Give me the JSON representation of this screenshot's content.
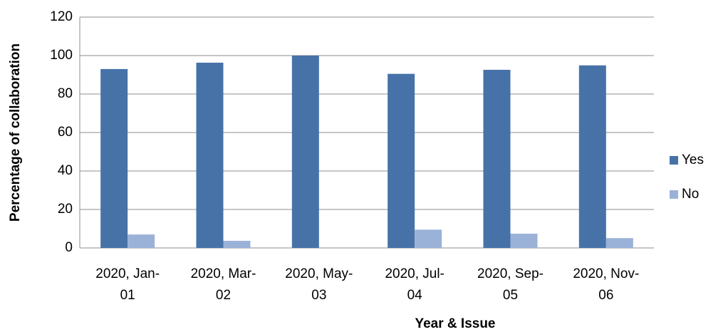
{
  "chart_data": {
    "type": "bar",
    "xlabel": "Year & Issue",
    "ylabel": "Percentage of collaboration",
    "categories": [
      "2020, Jan-01",
      "2020, Mar-02",
      "2020, May-03",
      "2020, Jul-04",
      "2020, Sep-05",
      "2020, Nov-06"
    ],
    "series": [
      {
        "name": "Yes",
        "color": "#4672a8",
        "values": [
          93,
          96.3,
          100,
          90.5,
          92.6,
          94.9
        ]
      },
      {
        "name": "No",
        "color": "#9bb2d8",
        "values": [
          7,
          3.7,
          0,
          9.5,
          7.4,
          5.1
        ]
      }
    ],
    "ylim": [
      0,
      120
    ],
    "yticks": [
      0,
      20,
      40,
      60,
      80,
      100,
      120
    ],
    "grid": true,
    "legend": "right"
  }
}
